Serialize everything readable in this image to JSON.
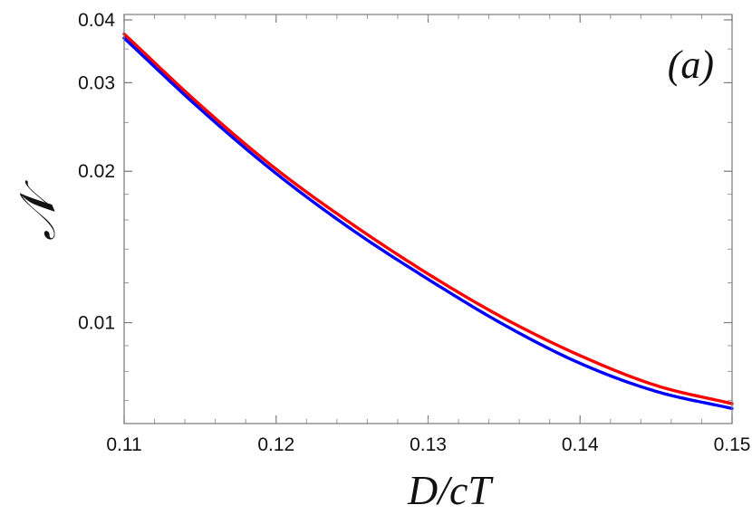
{
  "chart_data": {
    "type": "line",
    "title": "",
    "panel_label": "(a)",
    "xlabel": "D/cT",
    "ylabel": "𝒩",
    "xscale": "linear",
    "yscale": "log",
    "xlim": [
      0.11,
      0.15
    ],
    "ylim": [
      0.0063,
      0.041
    ],
    "x_ticks": [
      "0.11",
      "0.12",
      "0.13",
      "0.14",
      "0.15"
    ],
    "y_ticks": [
      "0.01",
      "0.02",
      "0.03",
      "0.04"
    ],
    "grid": false,
    "legend": "none",
    "series": [
      {
        "color": "#ff0000",
        "x": [
          0.11,
          0.115,
          0.12,
          0.125,
          0.13,
          0.135,
          0.14,
          0.145,
          0.15
        ],
        "y": [
          0.0375,
          0.0271,
          0.0202,
          0.0157,
          0.0125,
          0.0102,
          0.0086,
          0.0075,
          0.0069
        ]
      },
      {
        "color": "#0000ff",
        "x": [
          0.11,
          0.115,
          0.12,
          0.125,
          0.13,
          0.135,
          0.14,
          0.145,
          0.15
        ],
        "y": [
          0.0368,
          0.0266,
          0.0198,
          0.0153,
          0.0122,
          0.0099,
          0.0083,
          0.0073,
          0.00675
        ]
      }
    ]
  }
}
